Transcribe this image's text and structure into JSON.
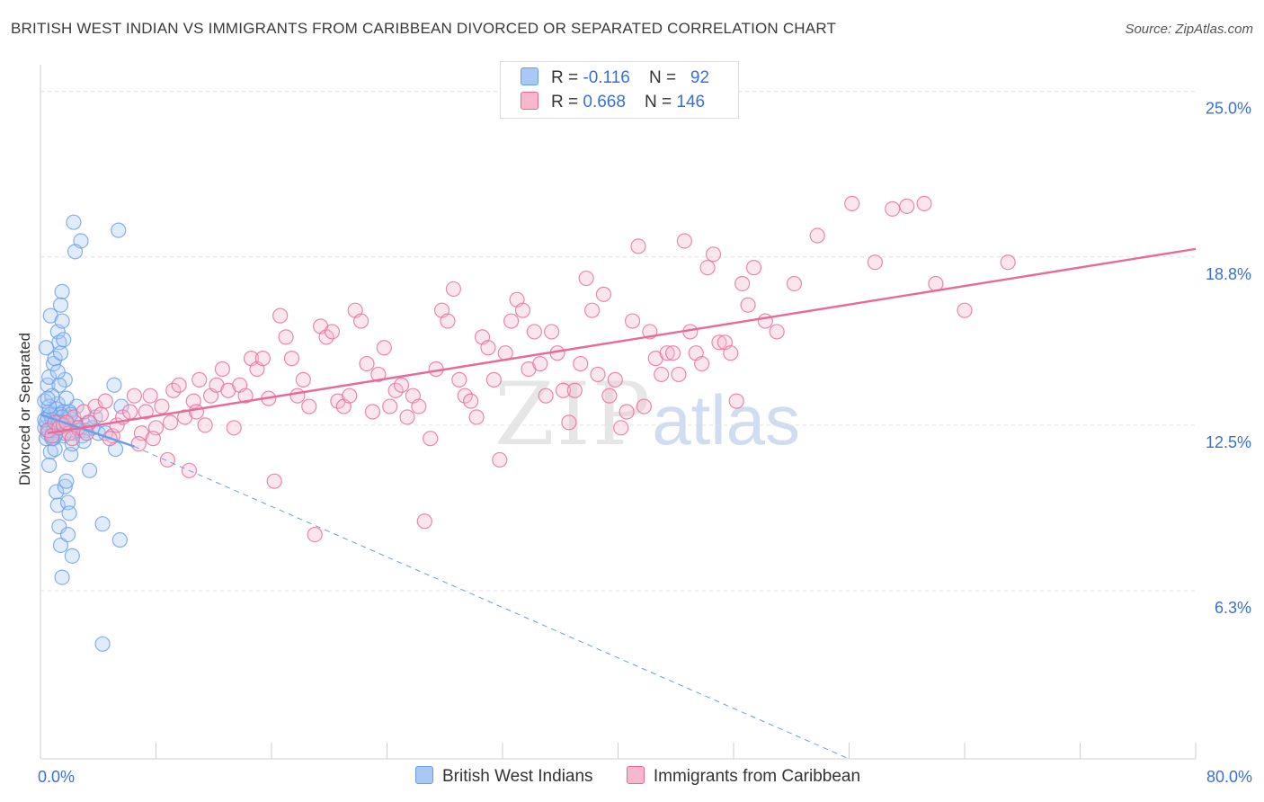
{
  "title": "BRITISH WEST INDIAN VS IMMIGRANTS FROM CARIBBEAN DIVORCED OR SEPARATED CORRELATION CHART",
  "source": "Source: ZipAtlas.com",
  "watermark": {
    "part1": "ZIP",
    "part2": "atlas"
  },
  "stats": {
    "row1": {
      "r_label": "R = ",
      "r_value": "-0.116",
      "n_label": "N = ",
      "n_value": "92",
      "color": "#a9c8f4"
    },
    "row2": {
      "r_label": "R = ",
      "r_value": "0.668",
      "n_label": "N = ",
      "n_value": "146",
      "color": "#f7b8cb"
    }
  },
  "legend": {
    "item1": {
      "label": "British West Indians",
      "color": "#a9c8f4"
    },
    "item2": {
      "label": "Immigrants from Caribbean",
      "color": "#f7b8cb"
    }
  },
  "chart_data": {
    "type": "scatter",
    "ylabel": "Divorced or Separated",
    "xlabel": "",
    "xlim": [
      0,
      80
    ],
    "ylim": [
      0,
      26
    ],
    "x_tick_labels": [
      {
        "value": 0,
        "label": "0.0%"
      },
      {
        "value": 80,
        "label": "80.0%"
      }
    ],
    "y_tick_labels": [
      {
        "value": 6.3,
        "label": "6.3%"
      },
      {
        "value": 12.5,
        "label": "12.5%"
      },
      {
        "value": 18.8,
        "label": "18.8%"
      },
      {
        "value": 25.0,
        "label": "25.0%"
      }
    ],
    "grid": true,
    "series": [
      {
        "name": "British West Indians",
        "color": "#6a9ee8",
        "fill": "rgba(169,200,244,0.35)",
        "trend": {
          "x": [
            0,
            6.5
          ],
          "y": [
            12.9,
            11.7
          ],
          "dashed_to": [
            56,
            0
          ]
        },
        "points": [
          [
            0.3,
            12.4
          ],
          [
            0.4,
            12.6
          ],
          [
            0.5,
            12.8
          ],
          [
            0.6,
            13.0
          ],
          [
            0.3,
            13.4
          ],
          [
            0.5,
            14.0
          ],
          [
            0.6,
            14.3
          ],
          [
            0.4,
            15.4
          ],
          [
            0.7,
            16.6
          ],
          [
            0.8,
            12.2
          ],
          [
            0.9,
            12.5
          ],
          [
            1.0,
            12.9
          ],
          [
            1.1,
            13.1
          ],
          [
            1.2,
            13.3
          ],
          [
            0.9,
            14.8
          ],
          [
            1.0,
            15.0
          ],
          [
            1.2,
            16.0
          ],
          [
            1.3,
            15.6
          ],
          [
            1.4,
            15.2
          ],
          [
            1.5,
            16.4
          ],
          [
            1.4,
            17.0
          ],
          [
            1.5,
            17.5
          ],
          [
            1.6,
            15.7
          ],
          [
            1.7,
            14.2
          ],
          [
            1.3,
            14.0
          ],
          [
            1.2,
            14.5
          ],
          [
            0.8,
            13.6
          ],
          [
            0.9,
            12.0
          ],
          [
            0.7,
            11.5
          ],
          [
            0.6,
            11.0
          ],
          [
            1.0,
            11.6
          ],
          [
            1.1,
            10.0
          ],
          [
            1.2,
            9.5
          ],
          [
            1.3,
            8.7
          ],
          [
            1.4,
            8.0
          ],
          [
            1.5,
            6.8
          ],
          [
            1.7,
            10.2
          ],
          [
            1.8,
            10.4
          ],
          [
            1.9,
            9.6
          ],
          [
            2.0,
            9.2
          ],
          [
            1.9,
            8.4
          ],
          [
            2.2,
            7.6
          ],
          [
            2.1,
            11.4
          ],
          [
            2.3,
            12.2
          ],
          [
            2.4,
            12.6
          ],
          [
            2.5,
            13.2
          ],
          [
            2.6,
            12.4
          ],
          [
            2.7,
            12.3
          ],
          [
            2.2,
            11.8
          ],
          [
            2.0,
            12.8
          ],
          [
            1.8,
            13.5
          ],
          [
            1.6,
            13.0
          ],
          [
            1.4,
            12.9
          ],
          [
            1.3,
            12.6
          ],
          [
            1.1,
            12.4
          ],
          [
            0.9,
            12.3
          ],
          [
            0.8,
            12.7
          ],
          [
            0.7,
            12.9
          ],
          [
            0.6,
            13.2
          ],
          [
            0.5,
            13.5
          ],
          [
            0.5,
            12.2
          ],
          [
            0.4,
            12.0
          ],
          [
            2.3,
            20.1
          ],
          [
            2.8,
            19.4
          ],
          [
            2.4,
            19.0
          ],
          [
            5.4,
            19.8
          ],
          [
            5.1,
            14.0
          ],
          [
            5.6,
            13.2
          ],
          [
            4.0,
            12.2
          ],
          [
            4.5,
            12.2
          ],
          [
            3.3,
            12.6
          ],
          [
            3.6,
            12.4
          ],
          [
            4.3,
            8.8
          ],
          [
            5.5,
            8.2
          ],
          [
            4.3,
            4.3
          ],
          [
            3.4,
            10.8
          ],
          [
            3.1,
            12.3
          ],
          [
            2.9,
            12.1
          ],
          [
            3.0,
            11.9
          ],
          [
            3.8,
            12.8
          ],
          [
            5.2,
            11.6
          ],
          [
            1.6,
            12.1
          ],
          [
            1.7,
            12.2
          ],
          [
            1.8,
            12.7
          ],
          [
            2.0,
            13.0
          ],
          [
            2.1,
            12.9
          ],
          [
            1.5,
            12.8
          ],
          [
            1.2,
            12.6
          ],
          [
            1.0,
            12.1
          ],
          [
            0.8,
            12.0
          ],
          [
            0.6,
            12.3
          ],
          [
            0.3,
            12.7
          ]
        ]
      },
      {
        "name": "Immigrants from Caribbean",
        "color": "#e86a9a",
        "fill": "rgba(247,184,203,0.35)",
        "trend": {
          "x": [
            0.5,
            80
          ],
          "y": [
            12.2,
            19.1
          ]
        },
        "points": [
          [
            0.5,
            12.3
          ],
          [
            0.8,
            12.1
          ],
          [
            1.0,
            12.6
          ],
          [
            1.3,
            12.4
          ],
          [
            1.6,
            12.5
          ],
          [
            2.0,
            12.2
          ],
          [
            2.3,
            12.8
          ],
          [
            2.6,
            12.4
          ],
          [
            3.0,
            13.0
          ],
          [
            3.4,
            12.6
          ],
          [
            3.8,
            13.2
          ],
          [
            4.2,
            12.9
          ],
          [
            4.5,
            13.4
          ],
          [
            5.0,
            12.1
          ],
          [
            5.3,
            12.5
          ],
          [
            5.7,
            12.8
          ],
          [
            6.2,
            13.0
          ],
          [
            6.5,
            13.6
          ],
          [
            7.0,
            12.2
          ],
          [
            7.3,
            13.0
          ],
          [
            7.6,
            13.6
          ],
          [
            8.0,
            12.4
          ],
          [
            8.4,
            13.2
          ],
          [
            8.8,
            11.2
          ],
          [
            9.2,
            13.8
          ],
          [
            9.6,
            14.0
          ],
          [
            10.0,
            12.8
          ],
          [
            10.3,
            10.8
          ],
          [
            10.6,
            13.4
          ],
          [
            11.0,
            14.2
          ],
          [
            11.4,
            12.5
          ],
          [
            11.8,
            13.6
          ],
          [
            12.2,
            14.0
          ],
          [
            12.6,
            14.6
          ],
          [
            13.0,
            13.8
          ],
          [
            13.4,
            12.4
          ],
          [
            13.8,
            14.0
          ],
          [
            14.2,
            13.6
          ],
          [
            14.6,
            15.0
          ],
          [
            15.0,
            14.6
          ],
          [
            15.4,
            15.0
          ],
          [
            15.8,
            13.5
          ],
          [
            16.2,
            10.4
          ],
          [
            16.6,
            16.6
          ],
          [
            17.0,
            15.8
          ],
          [
            17.4,
            15.0
          ],
          [
            17.8,
            13.6
          ],
          [
            18.2,
            14.2
          ],
          [
            18.6,
            13.2
          ],
          [
            19.0,
            8.4
          ],
          [
            19.4,
            16.2
          ],
          [
            19.8,
            15.8
          ],
          [
            20.2,
            16.0
          ],
          [
            20.6,
            13.4
          ],
          [
            21.0,
            13.2
          ],
          [
            21.4,
            13.6
          ],
          [
            21.8,
            16.8
          ],
          [
            22.2,
            16.4
          ],
          [
            22.6,
            14.8
          ],
          [
            23.0,
            13.0
          ],
          [
            23.4,
            14.4
          ],
          [
            23.8,
            15.4
          ],
          [
            24.2,
            13.2
          ],
          [
            24.6,
            13.8
          ],
          [
            25.0,
            14.0
          ],
          [
            25.4,
            12.8
          ],
          [
            25.8,
            13.6
          ],
          [
            26.2,
            13.2
          ],
          [
            26.6,
            8.9
          ],
          [
            27.0,
            12.0
          ],
          [
            27.4,
            14.6
          ],
          [
            27.8,
            16.8
          ],
          [
            28.2,
            16.4
          ],
          [
            28.6,
            17.6
          ],
          [
            29.0,
            14.2
          ],
          [
            29.4,
            13.6
          ],
          [
            29.8,
            13.4
          ],
          [
            30.2,
            12.8
          ],
          [
            30.6,
            15.8
          ],
          [
            31.0,
            15.4
          ],
          [
            31.4,
            14.2
          ],
          [
            31.8,
            11.2
          ],
          [
            32.2,
            15.2
          ],
          [
            32.6,
            16.4
          ],
          [
            33.0,
            17.2
          ],
          [
            33.4,
            16.8
          ],
          [
            33.8,
            14.6
          ],
          [
            34.2,
            16.0
          ],
          [
            34.6,
            14.8
          ],
          [
            35.0,
            13.6
          ],
          [
            35.4,
            16.0
          ],
          [
            35.8,
            15.2
          ],
          [
            36.2,
            13.8
          ],
          [
            36.6,
            12.6
          ],
          [
            37.0,
            13.8
          ],
          [
            37.4,
            14.8
          ],
          [
            37.8,
            18.0
          ],
          [
            38.2,
            16.8
          ],
          [
            38.6,
            14.4
          ],
          [
            39.0,
            17.4
          ],
          [
            39.4,
            13.6
          ],
          [
            39.8,
            14.2
          ],
          [
            40.2,
            12.4
          ],
          [
            40.6,
            13.0
          ],
          [
            41.0,
            16.4
          ],
          [
            41.4,
            19.2
          ],
          [
            41.8,
            13.2
          ],
          [
            42.2,
            16.0
          ],
          [
            42.6,
            15.0
          ],
          [
            43.0,
            14.4
          ],
          [
            43.4,
            15.2
          ],
          [
            43.8,
            15.2
          ],
          [
            44.2,
            14.4
          ],
          [
            44.6,
            19.4
          ],
          [
            45.0,
            16.0
          ],
          [
            45.4,
            15.2
          ],
          [
            45.8,
            14.8
          ],
          [
            46.2,
            18.4
          ],
          [
            46.6,
            18.9
          ],
          [
            47.0,
            15.6
          ],
          [
            47.4,
            15.6
          ],
          [
            47.8,
            15.2
          ],
          [
            48.2,
            13.4
          ],
          [
            48.6,
            17.8
          ],
          [
            49.0,
            17.0
          ],
          [
            49.4,
            18.4
          ],
          [
            50.2,
            16.4
          ],
          [
            51.0,
            16.0
          ],
          [
            52.2,
            17.8
          ],
          [
            53.8,
            19.6
          ],
          [
            56.2,
            20.8
          ],
          [
            57.8,
            18.6
          ],
          [
            59.0,
            20.6
          ],
          [
            60.0,
            20.7
          ],
          [
            61.2,
            20.8
          ],
          [
            62.0,
            17.8
          ],
          [
            64.0,
            16.8
          ],
          [
            67.0,
            18.6
          ],
          [
            1.8,
            12.6
          ],
          [
            2.2,
            12.0
          ],
          [
            3.2,
            12.2
          ],
          [
            4.8,
            12.0
          ],
          [
            6.8,
            11.8
          ],
          [
            7.8,
            12.0
          ],
          [
            9.0,
            12.6
          ],
          [
            10.8,
            13.0
          ]
        ]
      }
    ]
  }
}
